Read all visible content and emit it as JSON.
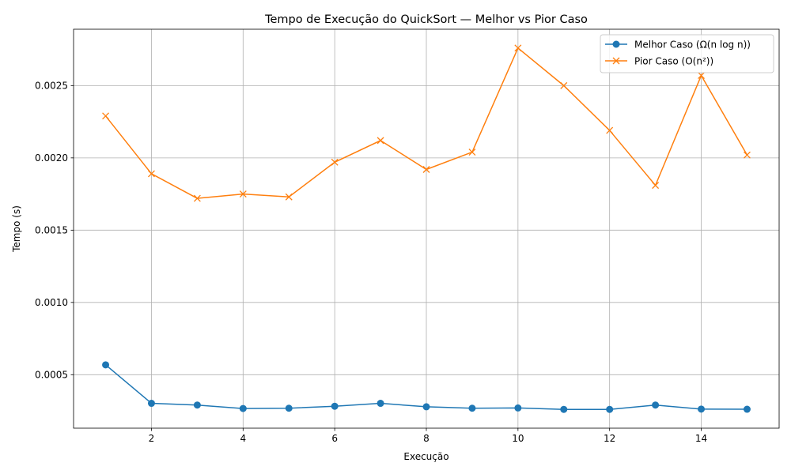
{
  "chart_data": {
    "type": "line",
    "title": "Tempo de Execução do QuickSort — Melhor vs Pior Caso",
    "xlabel": "Execução",
    "ylabel": "Tempo (s)",
    "xlim": [
      0.3,
      15.7
    ],
    "ylim": [
      0.00013,
      0.00289
    ],
    "xticks": [
      2,
      4,
      6,
      8,
      10,
      12,
      14
    ],
    "xtick_labels": [
      "2",
      "4",
      "6",
      "8",
      "10",
      "12",
      "14"
    ],
    "yticks": [
      0.0005,
      0.001,
      0.0015,
      0.002,
      0.0025
    ],
    "ytick_labels": [
      "0.0005",
      "0.0010",
      "0.0015",
      "0.0020",
      "0.0025"
    ],
    "grid": true,
    "legend_position": "top-right",
    "x": [
      1,
      2,
      3,
      4,
      5,
      6,
      7,
      8,
      9,
      10,
      11,
      12,
      13,
      14,
      15
    ],
    "series": [
      {
        "name": "Melhor Caso (Ω(n log n))",
        "color": "#1f77b4",
        "marker": "circle",
        "values": [
          0.000568,
          0.000302,
          0.00029,
          0.000266,
          0.000268,
          0.000282,
          0.000302,
          0.000278,
          0.000268,
          0.00027,
          0.00026,
          0.00026,
          0.00029,
          0.000262,
          0.000261
        ]
      },
      {
        "name": "Pior Caso (O(n²))",
        "color": "#ff7f0e",
        "marker": "x",
        "values": [
          0.00229,
          0.00189,
          0.00172,
          0.00175,
          0.00173,
          0.00197,
          0.00212,
          0.00192,
          0.00204,
          0.00276,
          0.0025,
          0.00219,
          0.00181,
          0.00257,
          0.00202
        ]
      }
    ]
  }
}
